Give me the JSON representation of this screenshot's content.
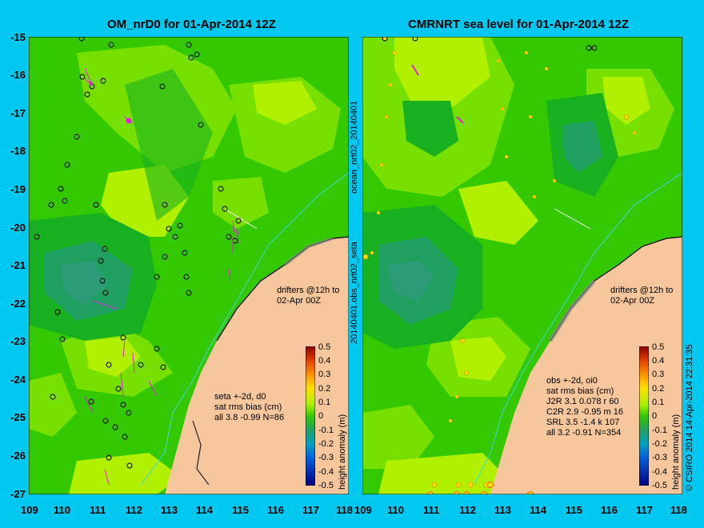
{
  "left_panel": {
    "title": "OM_nrD0 for 01-Apr-2014 12Z",
    "stats": [
      "seta +-2d, d0",
      "sat rms bias (cm)",
      "all 3.8 -0.99 N=86"
    ],
    "drifters": [
      "drifters @12h to",
      "02-Apr 00Z"
    ]
  },
  "right_panel": {
    "title": "CMRNRT sea level  for 01-Apr-2014 12Z",
    "stats": [
      "obs +-2d, oi0",
      "sat rms bias (cm)",
      "J2R   3.1 0.078 r 60",
      "C2R   2.9 -0.95 m 16",
      "SRL    3.5 -1.4 k 107",
      "all    3.2 -0.91 N=354"
    ],
    "drifters": [
      "drifters @12h to",
      "02-Apr 00Z"
    ]
  },
  "y_ticks": [
    "-15",
    "-16",
    "-17",
    "-18",
    "-19",
    "-20",
    "-21",
    "-22",
    "-23",
    "-24",
    "-25",
    "-26",
    "-27"
  ],
  "x_ticks_left": [
    "109",
    "110",
    "111",
    "112",
    "113",
    "114",
    "115",
    "116",
    "117",
    "118"
  ],
  "x_ticks_right": [
    "109",
    "110",
    "111",
    "112",
    "113",
    "114",
    "115",
    "116",
    "117",
    "118"
  ],
  "colorbar": {
    "labels": [
      "0.5",
      "0.4",
      "0.3",
      "0.2",
      "0.1",
      "0",
      "-0.1",
      "-0.2",
      "-0.3",
      "-0.4",
      "-0.5"
    ],
    "title": "height anomaly (m)"
  },
  "side_labels": {
    "upper": "ocean_nrt02_20140401",
    "lower": "20140401.obs_nrt02_seta",
    "right": "© CSIRO 2014   14-Apr-2014 22:31:35"
  },
  "colors": {
    "background": "#00c8f0",
    "land": "#f6c79c",
    "green": "#33c800",
    "yellow_green": "#a8f000",
    "drifter": "#e020e0"
  }
}
